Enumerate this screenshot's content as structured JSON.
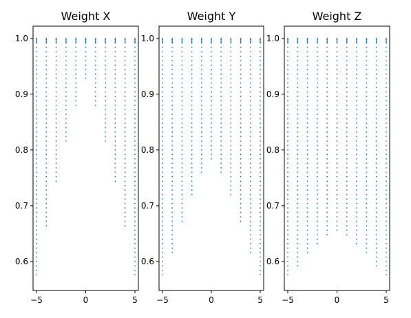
{
  "chart_data": [
    {
      "type": "scatter",
      "title": "Weight X",
      "xlim": [
        -5.35,
        5.35
      ],
      "ylim": [
        0.548,
        1.022
      ],
      "xticks": [
        -5,
        0,
        5
      ],
      "yticks": [
        0.6,
        0.7,
        0.8,
        0.9,
        1.0
      ],
      "x_columns": [
        -5,
        -4,
        -3,
        -2,
        -1,
        0,
        1,
        2,
        3,
        4,
        5
      ],
      "y_min_per_column": [
        0.57,
        0.66,
        0.74,
        0.815,
        0.875,
        0.925,
        0.875,
        0.815,
        0.74,
        0.66,
        0.57
      ],
      "marker_color": "#1f77b4"
    },
    {
      "type": "scatter",
      "title": "Weight Y",
      "xlim": [
        -5.35,
        5.35
      ],
      "ylim": [
        0.548,
        1.022
      ],
      "xticks": [
        -5,
        0,
        5
      ],
      "yticks": [
        0.6,
        0.7,
        0.8,
        0.9,
        1.0
      ],
      "x_columns": [
        -5,
        -4,
        -3,
        -2,
        -1,
        0,
        1,
        2,
        3,
        4,
        5
      ],
      "y_min_per_column": [
        0.57,
        0.61,
        0.67,
        0.72,
        0.76,
        0.78,
        0.76,
        0.72,
        0.67,
        0.61,
        0.57
      ],
      "marker_color": "#1f77b4"
    },
    {
      "type": "scatter",
      "title": "Weight Z",
      "xlim": [
        -5.35,
        5.35
      ],
      "ylim": [
        0.548,
        1.022
      ],
      "xticks": [
        -5,
        0,
        5
      ],
      "yticks": [
        0.6,
        0.7,
        0.8,
        0.9,
        1.0
      ],
      "x_columns": [
        -5,
        -4,
        -3,
        -2,
        -1,
        0,
        1,
        2,
        3,
        4,
        5
      ],
      "y_min_per_column": [
        0.57,
        0.59,
        0.61,
        0.63,
        0.645,
        0.655,
        0.645,
        0.63,
        0.61,
        0.59,
        0.57
      ],
      "marker_color": "#1f77b4"
    }
  ]
}
